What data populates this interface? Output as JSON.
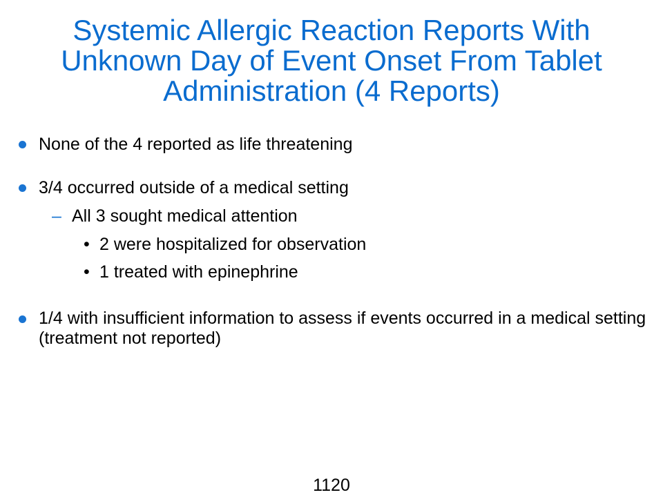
{
  "slide": {
    "title_lines": [
      "Systemic Allergic Reaction Reports With",
      "Unknown Day of Event Onset From Tablet",
      "Administration (4 Reports)"
    ],
    "bullets": [
      {
        "text": "None of the 4 reported as life threatening"
      },
      {
        "text": "3/4 occurred outside of a medical setting",
        "sub": {
          "marker": "–",
          "text": "All 3 sought medical attention",
          "items": [
            {
              "marker": "•",
              "text": "2 were hospitalized for observation"
            },
            {
              "marker": "•",
              "text": "1 treated with epinephrine"
            }
          ]
        }
      },
      {
        "text": "1/4 with insufficient information to assess if events occurred in a medical setting (treatment not reported)"
      }
    ],
    "page_number": "1120",
    "colors": {
      "title": "#0a6ccf",
      "bullet": "#1a74d2",
      "text": "#000000",
      "background": "#ffffff"
    }
  }
}
